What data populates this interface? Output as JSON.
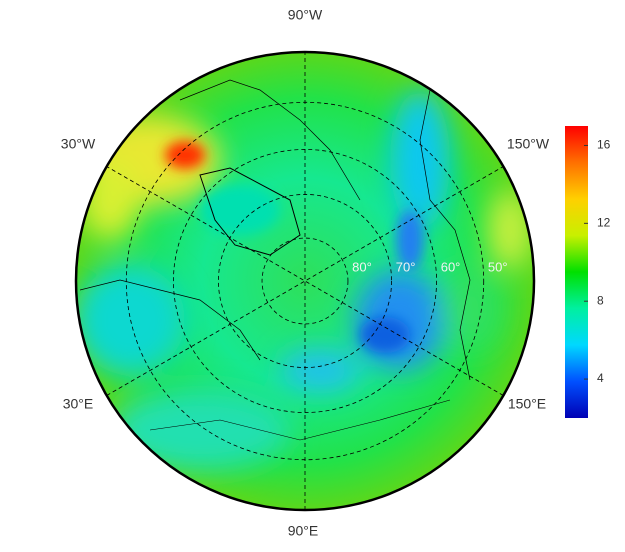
{
  "map": {
    "lon_labels": [
      "90°W",
      "30°W",
      "150°W",
      "30°E",
      "150°E",
      "90°E"
    ],
    "lat_circles": [
      {
        "value": 80,
        "label": "80°"
      },
      {
        "value": 70,
        "label": "70°"
      },
      {
        "value": 60,
        "label": "60°"
      },
      {
        "value": 50,
        "label": "50°"
      }
    ],
    "colorbar": {
      "range": [
        2,
        17
      ],
      "ticks": [
        4,
        8,
        12,
        16
      ],
      "colors": [
        "#0000b4",
        "#0050ff",
        "#00d8ff",
        "#00f0a0",
        "#00e000",
        "#c8f000",
        "#ffd000",
        "#ff7000",
        "#ff0000"
      ]
    }
  }
}
